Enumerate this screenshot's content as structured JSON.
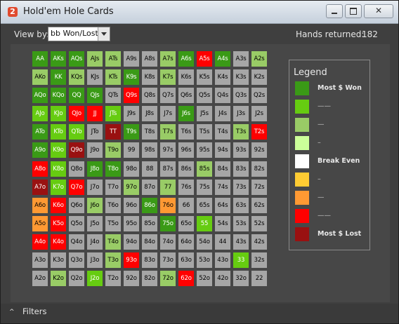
{
  "window": {
    "title": "Hold'em Hole Cards",
    "app_icon_text": "2",
    "close_glyph": "✕"
  },
  "toolbar": {
    "view_by_label": "View by:",
    "view_by_value": "bb Won/Lost",
    "hands_label": "Hands returned:",
    "hands_value": "182"
  },
  "colors": {
    "G": "#3a9a16",
    "M": "#66cc11",
    "L": "#99cc66",
    "P": "#ccff99",
    "W": "#ffffff",
    "Y": "#ffcc33",
    "O": "#ff9933",
    "R": "#ff0000",
    "D": "#991111",
    "N": "#a6a6a6"
  },
  "grid": {
    "rows": [
      [
        "AA",
        "AKs",
        "AQs",
        "AJs",
        "ATs",
        "A9s",
        "A8s",
        "A7s",
        "A6s",
        "A5s",
        "A4s",
        "A3s",
        "A2s"
      ],
      [
        "AKo",
        "KK",
        "KQs",
        "KJs",
        "KTs",
        "K9s",
        "K8s",
        "K7s",
        "K6s",
        "K5s",
        "K4s",
        "K3s",
        "K2s"
      ],
      [
        "AQo",
        "KQo",
        "QQ",
        "QJs",
        "QTs",
        "Q9s",
        "Q8s",
        "Q7s",
        "Q6s",
        "Q5s",
        "Q4s",
        "Q3s",
        "Q2s"
      ],
      [
        "AJo",
        "KJo",
        "QJo",
        "JJ",
        "JTs",
        "J9s",
        "J8s",
        "J7s",
        "J6s",
        "J5s",
        "J4s",
        "J3s",
        "J2s"
      ],
      [
        "ATo",
        "KTo",
        "QTo",
        "JTo",
        "TT",
        "T9s",
        "T8s",
        "T7s",
        "T6s",
        "T5s",
        "T4s",
        "T3s",
        "T2s"
      ],
      [
        "A9o",
        "K9o",
        "Q9o",
        "J9o",
        "T9o",
        "99",
        "98s",
        "97s",
        "96s",
        "95s",
        "94s",
        "93s",
        "92s"
      ],
      [
        "A8o",
        "K8o",
        "Q8o",
        "J8o",
        "T8o",
        "98o",
        "88",
        "87s",
        "86s",
        "85s",
        "84s",
        "83s",
        "82s"
      ],
      [
        "A7o",
        "K7o",
        "Q7o",
        "J7o",
        "T7o",
        "97o",
        "87o",
        "77",
        "76s",
        "75s",
        "74s",
        "73s",
        "72s"
      ],
      [
        "A6o",
        "K6o",
        "Q6o",
        "J6o",
        "T6o",
        "96o",
        "86o",
        "76o",
        "66",
        "65s",
        "64s",
        "63s",
        "62s"
      ],
      [
        "A5o",
        "K5o",
        "Q5o",
        "J5o",
        "T5o",
        "95o",
        "85o",
        "75o",
        "65o",
        "55",
        "54s",
        "53s",
        "52s"
      ],
      [
        "A4o",
        "K4o",
        "Q4o",
        "J4o",
        "T4o",
        "94o",
        "84o",
        "74o",
        "64o",
        "54o",
        "44",
        "43s",
        "42s"
      ],
      [
        "A3o",
        "K3o",
        "Q3o",
        "J3o",
        "T3o",
        "93o",
        "83o",
        "73o",
        "63o",
        "53o",
        "43o",
        "33",
        "32s"
      ],
      [
        "A2o",
        "K2o",
        "Q2o",
        "J2o",
        "T2o",
        "92o",
        "82o",
        "72o",
        "62o",
        "52o",
        "42o",
        "32o",
        "22"
      ]
    ],
    "levels": [
      [
        "G",
        "G",
        "G",
        "L",
        "L",
        "N",
        "N",
        "L",
        "G",
        "R",
        "G",
        "N",
        "L"
      ],
      [
        "L",
        "G",
        "L",
        "N",
        "L",
        "G",
        "N",
        "L",
        "N",
        "N",
        "N",
        "N",
        "N"
      ],
      [
        "G",
        "G",
        "G",
        "G",
        "N",
        "R",
        "N",
        "N",
        "N",
        "N",
        "N",
        "N",
        "N"
      ],
      [
        "M",
        "M",
        "R",
        "R",
        "M",
        "N",
        "N",
        "N",
        "G",
        "N",
        "N",
        "N",
        "N"
      ],
      [
        "G",
        "M",
        "M",
        "N",
        "D",
        "G",
        "N",
        "L",
        "N",
        "N",
        "N",
        "L",
        "R"
      ],
      [
        "G",
        "M",
        "D",
        "N",
        "L",
        "N",
        "N",
        "N",
        "N",
        "N",
        "N",
        "N",
        "N"
      ],
      [
        "R",
        "M",
        "N",
        "G",
        "G",
        "N",
        "N",
        "N",
        "N",
        "L",
        "N",
        "N",
        "N"
      ],
      [
        "D",
        "M",
        "R",
        "N",
        "N",
        "L",
        "N",
        "L",
        "N",
        "N",
        "N",
        "N",
        "N"
      ],
      [
        "O",
        "R",
        "N",
        "L",
        "N",
        "N",
        "G",
        "O",
        "N",
        "N",
        "N",
        "N",
        "N"
      ],
      [
        "O",
        "R",
        "N",
        "N",
        "N",
        "N",
        "N",
        "G",
        "N",
        "M",
        "N",
        "N",
        "N"
      ],
      [
        "R",
        "R",
        "N",
        "N",
        "L",
        "N",
        "N",
        "N",
        "N",
        "N",
        "N",
        "N",
        "N"
      ],
      [
        "N",
        "N",
        "N",
        "N",
        "L",
        "R",
        "N",
        "N",
        "N",
        "N",
        "N",
        "M",
        "N"
      ],
      [
        "N",
        "L",
        "N",
        "M",
        "N",
        "N",
        "N",
        "L",
        "R",
        "N",
        "N",
        "N",
        "N"
      ]
    ]
  },
  "legend": {
    "title": "Legend",
    "items": [
      {
        "label": "Most $ Won",
        "color": "#3a9a16"
      },
      {
        "label": "——",
        "color": "#66cc11"
      },
      {
        "label": "—",
        "color": "#99cc66"
      },
      {
        "label": "–",
        "color": "#ccff99"
      },
      {
        "label": "Break Even",
        "color": "#ffffff"
      },
      {
        "label": "–",
        "color": "#ffcc33"
      },
      {
        "label": "—",
        "color": "#ff9933"
      },
      {
        "label": "——",
        "color": "#ff0000"
      },
      {
        "label": "Most $ Lost",
        "color": "#991111"
      }
    ]
  },
  "footer": {
    "filters_label": "Filters",
    "chevron": "^"
  }
}
